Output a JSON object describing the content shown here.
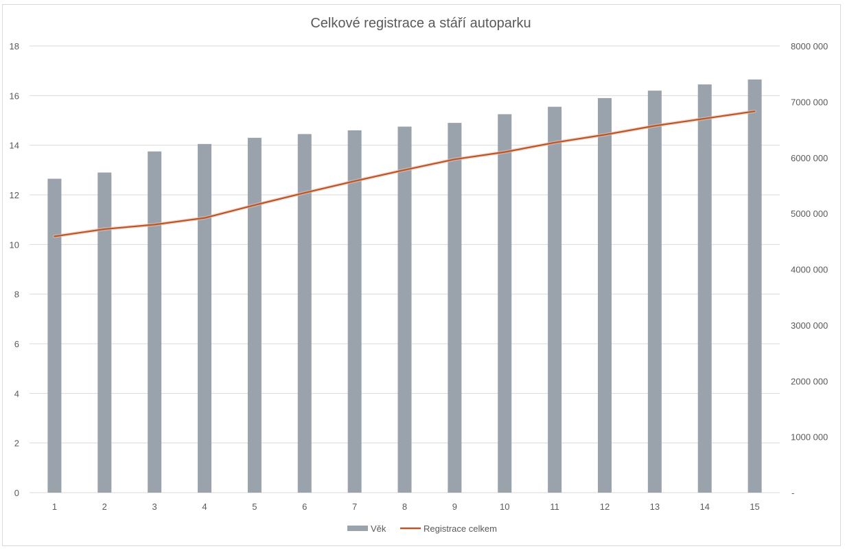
{
  "chart_data": {
    "type": "bar+line",
    "title": "Celkové registrace a stáří autoparku",
    "categories": [
      "1",
      "2",
      "3",
      "4",
      "5",
      "6",
      "7",
      "8",
      "9",
      "10",
      "11",
      "12",
      "13",
      "14",
      "15"
    ],
    "series": [
      {
        "name": "Věk",
        "type": "bar",
        "axis": "left",
        "color": "#9aa2ab",
        "values": [
          12.65,
          12.9,
          13.75,
          14.05,
          14.3,
          14.45,
          14.6,
          14.75,
          14.9,
          15.25,
          15.55,
          15.9,
          16.2,
          16.45,
          16.65
        ]
      },
      {
        "name": "Registrace celkem",
        "type": "line",
        "axis": "right",
        "color": "#b8562a",
        "values": [
          4590000,
          4720000,
          4800000,
          4920000,
          5150000,
          5370000,
          5580000,
          5780000,
          5970000,
          6100000,
          6270000,
          6410000,
          6570000,
          6700000,
          6830000
        ]
      }
    ],
    "y_left": {
      "min": 0,
      "max": 18,
      "step": 2,
      "ticks": [
        "0",
        "2",
        "4",
        "6",
        "8",
        "10",
        "12",
        "14",
        "16",
        "18"
      ]
    },
    "y_right": {
      "min": 0,
      "max": 8000000,
      "step": 1000000,
      "ticks": [
        "-",
        "1000 000",
        "2000 000",
        "3000 000",
        "4000 000",
        "5000 000",
        "6000 000",
        "7000 000",
        "8000 000"
      ]
    },
    "grid": true,
    "legend_position": "bottom",
    "colors": {
      "grid": "#d9d9d9",
      "text": "#595959",
      "bar": "#9aa2ab",
      "line": "#b8562a"
    }
  }
}
